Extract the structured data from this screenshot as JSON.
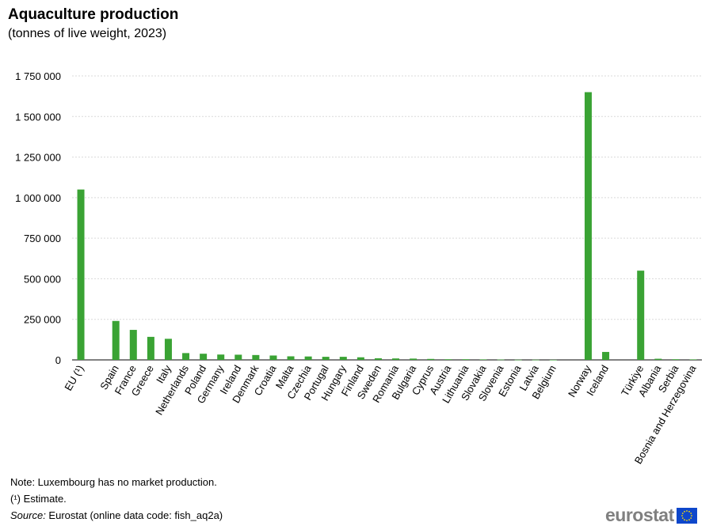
{
  "header": {
    "title": "Aquaculture production",
    "subtitle": "(tonnes of live weight, 2023)"
  },
  "chart_data": {
    "type": "bar",
    "title": "Aquaculture production",
    "subtitle": "(tonnes of live weight, 2023)",
    "xlabel": "",
    "ylabel": "",
    "ylim": [
      0,
      1750000
    ],
    "yticks": [
      0,
      250000,
      500000,
      750000,
      1000000,
      1250000,
      1500000,
      1750000
    ],
    "ytick_labels": [
      "0",
      "250 000",
      "500 000",
      "750 000",
      "1 000 000",
      "1 250 000",
      "1 500 000",
      "1 750 000"
    ],
    "grid": true,
    "bar_color": "#3aa334",
    "grid_color": "#d9d9d9",
    "categories": [
      "EU (¹)",
      "",
      "Spain",
      "France",
      "Greece",
      "Italy",
      "Netherlands",
      "Poland",
      "Germany",
      "Ireland",
      "Denmark",
      "Croatia",
      "Malta",
      "Czechia",
      "Portugal",
      "Hungary",
      "Finland",
      "Sweden",
      "Romania",
      "Bulgaria",
      "Cyprus",
      "Austria",
      "Lithuania",
      "Slovakia",
      "Slovenia",
      "Estonia",
      "Latvia",
      "Belgium",
      "",
      "Norway",
      "Iceland",
      "",
      "Türkiye",
      "Albania",
      "Serbia",
      "Bosnia and Herzegovina"
    ],
    "values": [
      1050000,
      null,
      240000,
      185000,
      142000,
      130000,
      42000,
      38000,
      33000,
      32000,
      30000,
      27000,
      22000,
      21000,
      19000,
      19000,
      16000,
      10000,
      9000,
      8000,
      6000,
      4000,
      4000,
      3000,
      2000,
      1000,
      1000,
      300,
      null,
      1650000,
      49000,
      null,
      550000,
      7000,
      4000,
      3000
    ]
  },
  "notes": {
    "note": "Note: Luxembourg has no market production.",
    "estimate": "(¹) Estimate.",
    "source_label": "Source:",
    "source_text": " Eurostat (online data code: fish_aq2a)"
  },
  "logo": {
    "text": "eurostat",
    "flag_color": "#0e47cb",
    "star_color": "#ffdd00"
  }
}
